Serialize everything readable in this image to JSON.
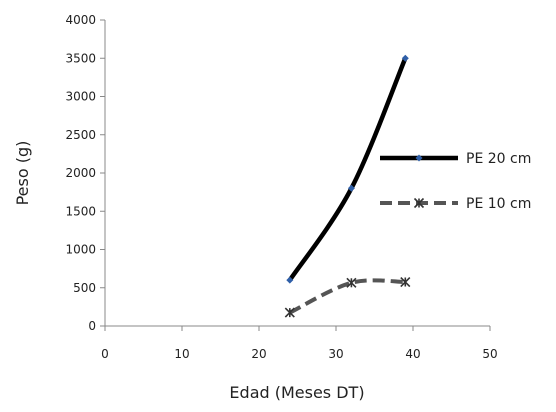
{
  "chart_data": {
    "type": "line",
    "xlabel": "Edad (Meses DT)",
    "ylabel": "Peso (g)",
    "xlim": [
      0,
      50
    ],
    "ylim": [
      0,
      4000
    ],
    "xticks": [
      0,
      10,
      20,
      30,
      40,
      50
    ],
    "yticks": [
      0,
      500,
      1000,
      1500,
      2000,
      2500,
      3000,
      3500,
      4000
    ],
    "xtick_labels": [
      "0",
      "10",
      "20",
      "30",
      "40",
      "50"
    ],
    "ytick_labels": [
      "0",
      "500",
      "1000",
      "1500",
      "2000",
      "2500",
      "3000",
      "3500",
      "4000"
    ],
    "grid": false,
    "legend_position": "right",
    "series": [
      {
        "name": "PE 20 cm",
        "x": [
          24,
          32,
          39
        ],
        "y": [
          600,
          1800,
          3500
        ],
        "line_style": "solid",
        "line_color": "#000000",
        "marker": "diamond",
        "marker_color": "#2f5fa8"
      },
      {
        "name": "PE 10 cm",
        "x": [
          24,
          32,
          39
        ],
        "y": [
          175,
          565,
          575
        ],
        "line_style": "dashed",
        "line_color": "#555555",
        "marker": "asterisk",
        "marker_color": "#333333"
      }
    ]
  }
}
